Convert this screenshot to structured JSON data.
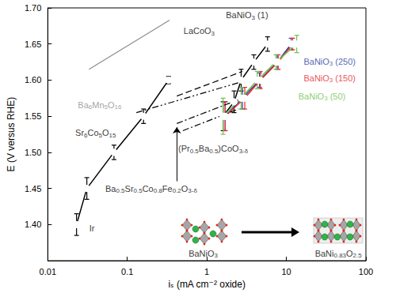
{
  "chart_data": {
    "type": "line",
    "xlabel": "iₛ (mA cm⁻² oxide)",
    "ylabel": "E (V versus RHE)",
    "log": "x",
    "grid": false,
    "xlim": [
      0.01,
      100
    ],
    "xticks": [
      0.01,
      0.1,
      1,
      10,
      100
    ],
    "ylim": [
      1.35,
      1.7
    ],
    "yticks": [
      {
        "value": 1.4,
        "label": "1.40"
      },
      {
        "value": 1.45,
        "label": "1.45"
      },
      {
        "value": 1.5,
        "label": "1.50"
      },
      {
        "value": 1.55,
        "label": "1.55"
      },
      {
        "value": 1.6,
        "label": "1.60"
      },
      {
        "value": 1.65,
        "label": "1.65"
      },
      {
        "value": 1.7,
        "label": "1.70"
      }
    ],
    "series": [
      {
        "name": "Ir",
        "color": "#000000",
        "marker": "circle",
        "line_style": "solid",
        "x": [
          0.023,
          0.031,
          0.068,
          0.16,
          0.33
        ],
        "values": [
          1.4,
          1.45,
          1.5,
          1.55,
          1.6
        ],
        "errors": [
          0.015,
          0.015,
          0.01,
          0.01,
          0.005
        ],
        "name_at": [
          0.036,
          1.395
        ]
      },
      {
        "name": "BaNiO3 (1)",
        "color": "#000000",
        "marker": "circle",
        "line_style": "solid",
        "x": [
          1.6,
          2.2,
          2.7,
          3.9,
          5.8
        ],
        "values": [
          1.55,
          1.57,
          1.6,
          1.625,
          1.65
        ],
        "errors": [
          0.02,
          0.015,
          0.015,
          0.01,
          0.01
        ],
        "name_at": [
          3.2,
          1.69
        ]
      },
      {
        "name": "BaNiO3 (250)",
        "color": "#2b3a9e",
        "marker": "circle",
        "line_style": "solid",
        "x": [
          1.7,
          2.8,
          4.6,
          7.7,
          11.5
        ],
        "values": [
          1.55,
          1.575,
          1.6,
          1.625,
          1.65
        ],
        "errors": [
          0.02,
          0.015,
          0.01,
          0.01,
          0.008
        ],
        "name_at": [
          35,
          1.626
        ]
      },
      {
        "name": "BaNiO3 (150)",
        "color": "#e8262b",
        "marker": "circle",
        "line_style": "solid",
        "x": [
          1.7,
          3.0,
          4.7,
          7.9,
          12
        ],
        "values": [
          1.55,
          1.575,
          1.6,
          1.625,
          1.65
        ],
        "errors": [
          0.02,
          0.015,
          0.012,
          0.01,
          0.008
        ],
        "name_at": [
          35,
          1.603
        ]
      },
      {
        "name": "BaNiO3 (50)",
        "color": "#6cc24a",
        "marker": "circle",
        "line_style": "solid",
        "x": [
          1.6,
          2.7,
          4.3,
          7.4,
          13.5
        ],
        "values": [
          1.55,
          1.575,
          1.6,
          1.625,
          1.65
        ],
        "errors": [
          0.025,
          0.015,
          0.012,
          0.01,
          0.012
        ],
        "name_at": [
          28,
          1.578
        ]
      },
      {
        "name": "Ba6Mn5O16",
        "color": "#8c8c8c",
        "line_style": "solid",
        "x": [
          0.033,
          0.34
        ],
        "values": [
          1.615,
          1.683
        ],
        "name_at": [
          0.045,
          1.566
        ]
      },
      {
        "name": "LaCoO3",
        "color": "#000000",
        "line_style": "dashed",
        "x": [
          0.42,
          2.8
        ],
        "values": [
          1.578,
          1.612
        ],
        "name_at": [
          0.8,
          1.668
        ]
      },
      {
        "name": "Sr6Co5O15",
        "color": "#000000",
        "line_style": "dashdotdot",
        "x": [
          0.13,
          2.8
        ],
        "values": [
          1.555,
          1.598
        ],
        "name_at": [
          0.04,
          1.527
        ]
      },
      {
        "name": "Ba0.5Sr0.5Co0.8Fe0.2O3-δ",
        "color": "#000000",
        "line_style": "dashdot",
        "x": [
          0.42,
          2.8
        ],
        "values": [
          1.54,
          1.575
        ],
        "name_at": [
          0.2,
          1.45
        ],
        "arrow": {
          "x": [
            0.42,
            0.42
          ],
          "y": [
            1.46,
            1.535
          ]
        }
      },
      {
        "name": "(Pr0.5Ba0.5)CoO3-δ",
        "color": "#000000",
        "line_style": "dashdot",
        "x": [
          0.5,
          2.5
        ],
        "values": [
          1.53,
          1.56
        ],
        "name_at": [
          1.2,
          1.505
        ]
      }
    ],
    "annotations": [
      {
        "text": "BaNiO3",
        "x": 0.9,
        "y": 1.36
      },
      {
        "text": "BaNi0.83O2.5",
        "x": 45,
        "y": 1.36
      }
    ]
  }
}
